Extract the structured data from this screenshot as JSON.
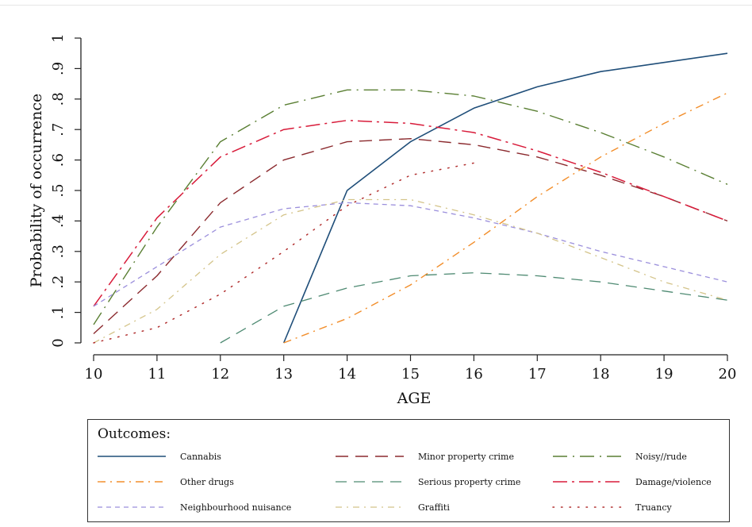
{
  "chart_data": {
    "type": "line",
    "xlabel": "AGE",
    "ylabel": "Probability of occurrence",
    "xlim": [
      10,
      20
    ],
    "ylim": [
      0,
      1
    ],
    "x_ticks": [
      "10",
      "11",
      "12",
      "13",
      "14",
      "15",
      "16",
      "17",
      "18",
      "19",
      "20"
    ],
    "y_ticks": [
      "0",
      ".1",
      ".2",
      ".3",
      ".4",
      ".5",
      ".6",
      ".7",
      ".8",
      ".9",
      "1"
    ],
    "grid": false,
    "legend_position": "bottom",
    "legend_title": "Outcomes:",
    "series": [
      {
        "name": "Cannabis",
        "color": "#1f4e79",
        "dash": "",
        "width": 1.6,
        "x": [
          13,
          14,
          15,
          16,
          17,
          18,
          19,
          20
        ],
        "y": [
          0.0,
          0.5,
          0.66,
          0.77,
          0.84,
          0.89,
          0.92,
          0.95
        ]
      },
      {
        "name": "Minor property crime",
        "color": "#8b2a2e",
        "dash": "16,9",
        "width": 1.4,
        "x": [
          10,
          11,
          12,
          13,
          14,
          15,
          16,
          17,
          18,
          19,
          20
        ],
        "y": [
          0.03,
          0.22,
          0.46,
          0.6,
          0.66,
          0.67,
          0.65,
          0.61,
          0.55,
          0.48,
          0.4
        ]
      },
      {
        "name": "Noisy//rude",
        "color": "#5a7f33",
        "dash": "18,7,2,7",
        "width": 1.4,
        "x": [
          10,
          11,
          12,
          13,
          14,
          15,
          16,
          17,
          18,
          19,
          20
        ],
        "y": [
          0.06,
          0.38,
          0.66,
          0.78,
          0.83,
          0.83,
          0.81,
          0.76,
          0.69,
          0.61,
          0.52
        ]
      },
      {
        "name": "Other drugs",
        "color": "#f28e2b",
        "dash": "10,6,2,6",
        "width": 1.4,
        "x": [
          13,
          14,
          15,
          16,
          17,
          18,
          19,
          20
        ],
        "y": [
          0.0,
          0.08,
          0.19,
          0.33,
          0.48,
          0.61,
          0.72,
          0.82
        ]
      },
      {
        "name": "Serious property crime",
        "color": "#4e8a72",
        "dash": "14,9",
        "width": 1.3,
        "x": [
          12,
          13,
          14,
          15,
          16,
          17,
          18,
          19,
          20
        ],
        "y": [
          0.0,
          0.12,
          0.18,
          0.22,
          0.23,
          0.22,
          0.2,
          0.17,
          0.14
        ]
      },
      {
        "name": "Damage/violence",
        "color": "#d81b3a",
        "dash": "18,6,3,6",
        "width": 1.5,
        "x": [
          10,
          11,
          12,
          13,
          14,
          15,
          16,
          17,
          18,
          19,
          20
        ],
        "y": [
          0.12,
          0.41,
          0.61,
          0.7,
          0.73,
          0.72,
          0.69,
          0.63,
          0.56,
          0.48,
          0.4
        ]
      },
      {
        "name": "Neighbourhood nuisance",
        "color": "#9b8fdc",
        "dash": "6,5",
        "width": 1.3,
        "x": [
          10,
          11,
          12,
          13,
          14,
          15,
          16,
          17,
          18,
          19,
          20
        ],
        "y": [
          0.12,
          0.25,
          0.38,
          0.44,
          0.46,
          0.45,
          0.41,
          0.36,
          0.3,
          0.25,
          0.2
        ]
      },
      {
        "name": "Graffiti",
        "color": "#d4c48a",
        "dash": "8,6,2,6",
        "width": 1.3,
        "x": [
          10,
          11,
          12,
          13,
          14,
          15,
          16,
          17,
          18,
          19,
          20
        ],
        "y": [
          0.0,
          0.11,
          0.29,
          0.42,
          0.47,
          0.47,
          0.42,
          0.36,
          0.28,
          0.2,
          0.14
        ]
      },
      {
        "name": "Truancy",
        "color": "#b23030",
        "dash": "1.5,9",
        "width": 1.5,
        "x": [
          10,
          11,
          12,
          13,
          14,
          15,
          16
        ],
        "y": [
          0.0,
          0.05,
          0.16,
          0.3,
          0.45,
          0.55,
          0.59
        ]
      }
    ]
  }
}
